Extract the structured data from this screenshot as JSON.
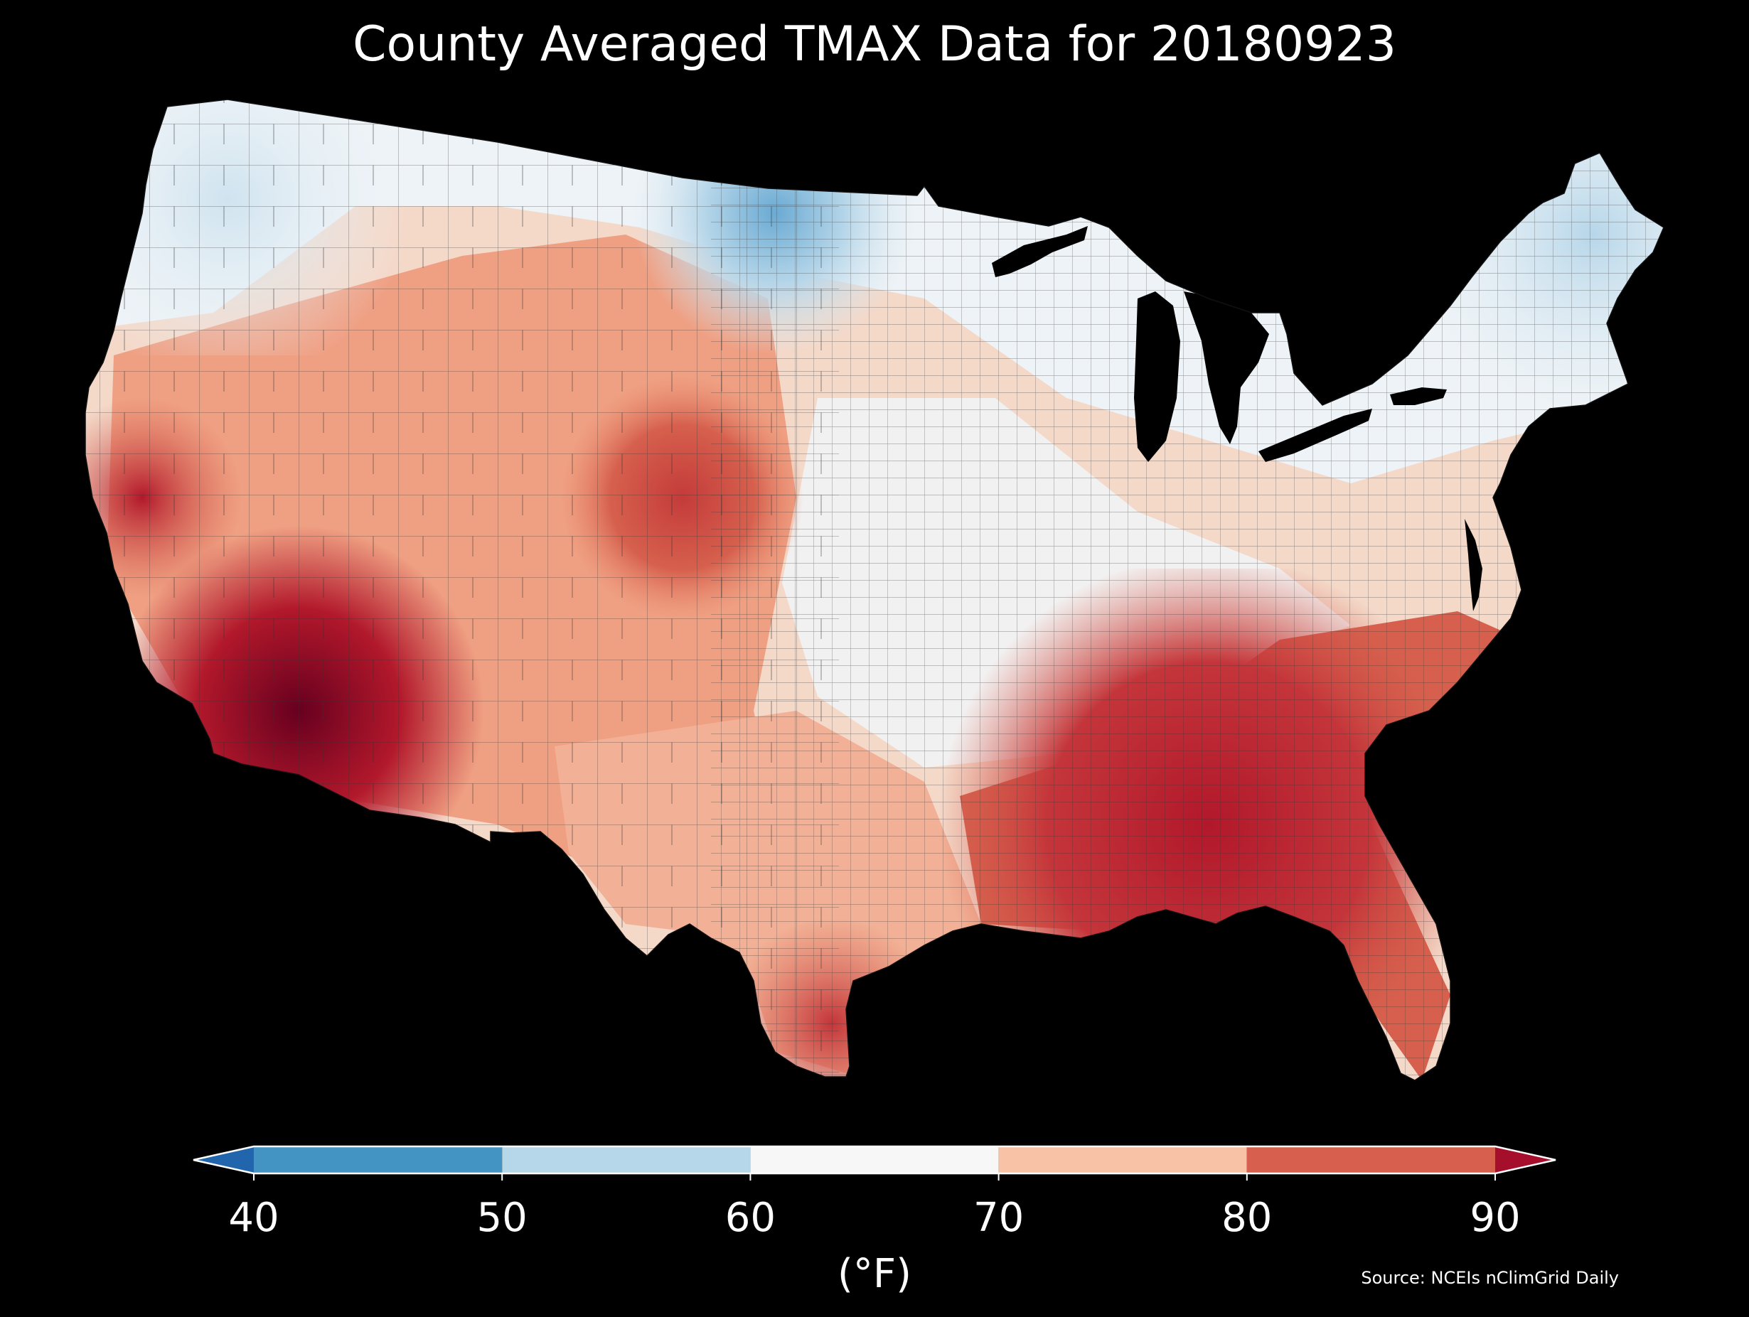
{
  "title": "County Averaged TMAX Data for 20180923",
  "colorbar": {
    "ticks": [
      "40",
      "50",
      "60",
      "70",
      "80",
      "90"
    ],
    "unit_label": "(°F)",
    "bins": [
      {
        "range": [
          40,
          50
        ],
        "color": "#4393c3"
      },
      {
        "range": [
          50,
          60
        ],
        "color": "#b6d6e9"
      },
      {
        "range": [
          60,
          70
        ],
        "color": "#f7f7f7"
      },
      {
        "range": [
          70,
          80
        ],
        "color": "#f7c2a6"
      },
      {
        "range": [
          80,
          90
        ],
        "color": "#d6604d"
      }
    ],
    "under_color": "#2166ac",
    "over_color": "#a50f2b"
  },
  "source": "Source: NCEIs nClimGrid Daily",
  "map": {
    "region": "contiguous-united-states",
    "water_color": "#000000",
    "county_border_color": "#222222"
  }
}
